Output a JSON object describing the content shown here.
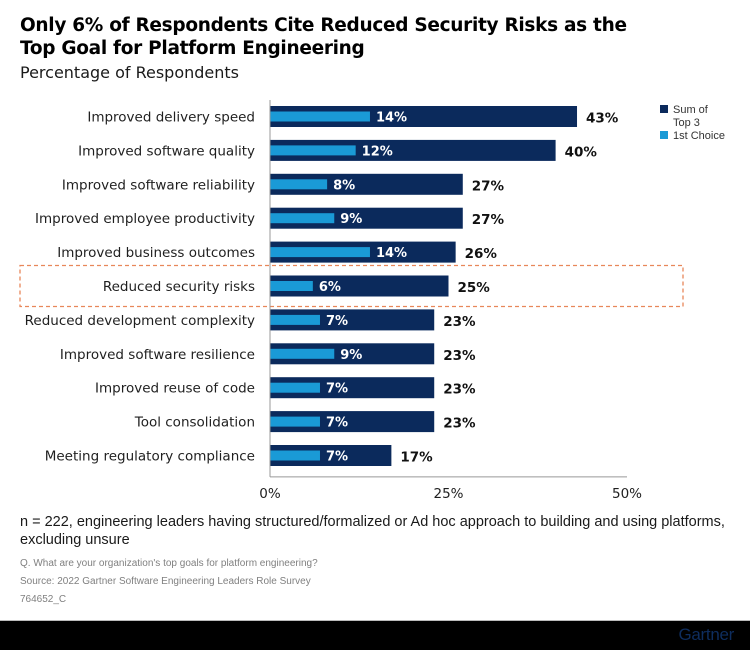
{
  "header": {
    "title": "Only 6% of Respondents Cite Reduced Security Risks as the Top Goal for Platform Engineering",
    "subtitle": "Percentage of Respondents"
  },
  "colors": {
    "sum_top3": "#0b2a5c",
    "first_choice": "#1a9ad6",
    "highlight_border": "#e8875a",
    "axis": "#999999"
  },
  "chart_data": {
    "type": "bar",
    "orientation": "horizontal",
    "title": "Only 6% of Respondents Cite Reduced Security Risks as the Top Goal for Platform Engineering",
    "subtitle": "Percentage of Respondents",
    "xlabel": "",
    "ylabel": "",
    "xlim": [
      0,
      50
    ],
    "xticks": [
      0,
      25,
      50
    ],
    "xtick_labels": [
      "0%",
      "25%",
      "50%"
    ],
    "grid": false,
    "legend_position": "top-right",
    "categories": [
      "Improved delivery speed",
      "Improved software quality",
      "Improved software reliability",
      "Improved employee productivity",
      "Improved business outcomes",
      "Reduced security risks",
      "Reduced development complexity",
      "Improved software resilience",
      "Improved reuse of code",
      "Tool consolidation",
      "Meeting regulatory compliance"
    ],
    "series": [
      {
        "name": "Sum of Top 3",
        "values": [
          43,
          40,
          27,
          27,
          26,
          25,
          23,
          23,
          23,
          23,
          17
        ]
      },
      {
        "name": "1st Choice",
        "values": [
          14,
          12,
          8,
          9,
          14,
          6,
          7,
          9,
          7,
          7,
          7
        ]
      }
    ],
    "highlighted_category": "Reduced security risks",
    "value_suffix": "%"
  },
  "legend": {
    "items": [
      {
        "label_lines": [
          "Sum of",
          "Top 3"
        ]
      },
      {
        "label_lines": [
          "1st Choice"
        ]
      }
    ]
  },
  "notes": {
    "sample": "n = 222, engineering leaders having structured/formalized or Ad hoc approach to building and using platforms, excluding unsure",
    "question": "Q. What are your organization's top goals for platform engineering?",
    "source": "Source: 2022 Gartner Software Engineering Leaders Role Survey",
    "code": "764652_C"
  },
  "footer": {
    "brand": "Gartner"
  }
}
